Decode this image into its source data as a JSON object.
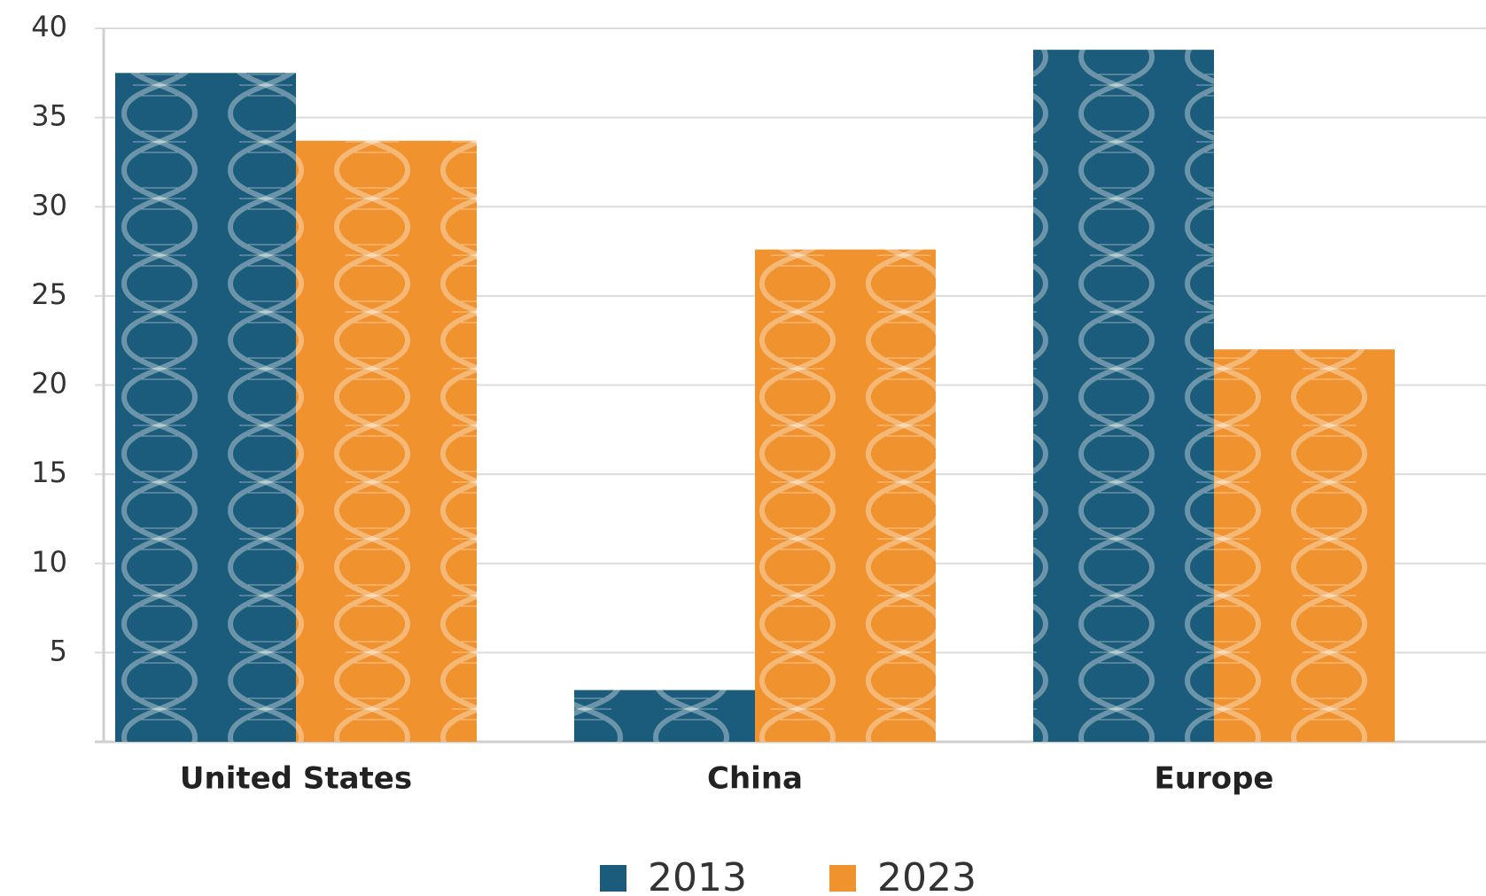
{
  "chart_data": {
    "type": "bar",
    "categories": [
      "United States",
      "China",
      "Europe"
    ],
    "series": [
      {
        "name": "2013",
        "color": "#1b5b7b",
        "values": [
          37.5,
          2.9,
          38.8
        ]
      },
      {
        "name": "2023",
        "color": "#f0922e",
        "values": [
          33.7,
          27.6,
          22.0
        ]
      }
    ],
    "ylim": [
      0,
      40
    ],
    "yticks": [
      5,
      10,
      15,
      20,
      25,
      30,
      35,
      40
    ],
    "grid": true,
    "legend": "bottom"
  }
}
